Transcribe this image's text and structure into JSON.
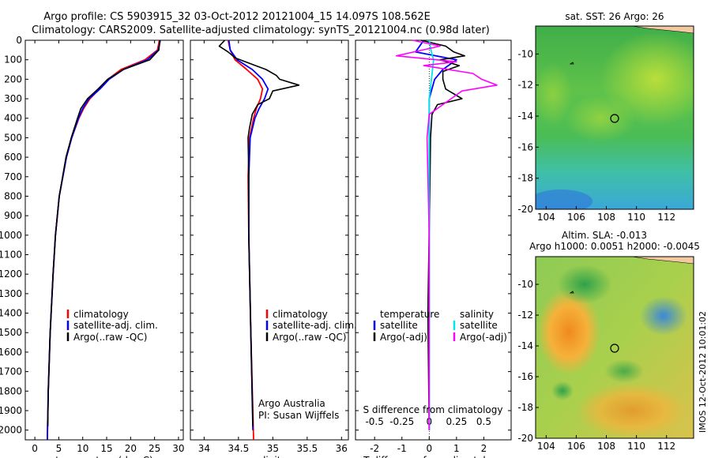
{
  "header": {
    "line1": "Argo profile: CS 5903915_32 03-Oct-2012 20121004_15 14.097S 108.562E",
    "line2": "Climatology: CARS2009. Satellite-adjusted climatology: synTS_20121004.nc (0.98d later)"
  },
  "colors": {
    "climatology": "#ff0000",
    "satellite": "#0000ff",
    "argo": "#000000",
    "sat_cyan": "#00e5ee",
    "argo_magenta": "#ff00ff"
  },
  "footer_side": "IMOS 12-Oct-2012 10:01:02",
  "chart_data": [
    {
      "type": "line",
      "title": "",
      "xlabel": "temperature (deg C)",
      "ylabel": "",
      "xlim": [
        -2,
        31
      ],
      "ylim": [
        2050,
        0
      ],
      "xticks": [
        "0",
        "5",
        "10",
        "15",
        "20",
        "25",
        "30"
      ],
      "yticks": [
        "0",
        "100",
        "200",
        "300",
        "400",
        "500",
        "600",
        "700",
        "800",
        "900",
        "1000",
        "1100",
        "1200",
        "1300",
        "1400",
        "1500",
        "1600",
        "1700",
        "1800",
        "1900",
        "2000"
      ],
      "legend": [
        "climatology",
        "satellite-adj. clim.",
        "Argo(..raw -QC)"
      ],
      "series": [
        {
          "name": "climatology",
          "depth": [
            0,
            50,
            100,
            150,
            200,
            250,
            300,
            350,
            400,
            500,
            600,
            800,
            1000,
            1200,
            1500,
            1800,
            2050
          ],
          "values": [
            26,
            25.6,
            23,
            18,
            15.3,
            13.5,
            11.5,
            10.2,
            9.2,
            7.7,
            6.6,
            5.1,
            4.3,
            3.8,
            3.2,
            2.8,
            2.6
          ]
        },
        {
          "name": "satellite-adj. clim.",
          "depth": [
            0,
            50,
            100,
            150,
            200,
            250,
            300,
            350,
            400,
            500,
            600,
            800,
            1000,
            1200,
            1500,
            1800,
            2050
          ],
          "values": [
            26.2,
            25.8,
            23.5,
            18.5,
            15.5,
            13.6,
            11.3,
            10,
            9.1,
            7.7,
            6.6,
            5.1,
            4.3,
            3.8,
            3.2,
            2.8,
            2.6
          ]
        },
        {
          "name": "Argo(..raw -QC)",
          "depth": [
            0,
            50,
            100,
            150,
            200,
            250,
            300,
            350,
            400,
            500,
            600,
            800,
            1000,
            1200,
            1500,
            1800,
            1980
          ],
          "values": [
            26.1,
            25.9,
            24,
            18.5,
            15.2,
            13.2,
            11,
            9.6,
            8.9,
            7.6,
            6.5,
            5.1,
            4.3,
            3.8,
            3.2,
            2.8,
            2.7
          ]
        }
      ]
    },
    {
      "type": "line",
      "xlabel": "salinity",
      "xlim": [
        33.8,
        36.1
      ],
      "ylim": [
        2050,
        0
      ],
      "xticks": [
        "34",
        "34.5",
        "35",
        "35.5",
        "36"
      ],
      "legend": [
        "climatology",
        "satellite-adj. clim.",
        "Argo(..raw -QC)"
      ],
      "annotations": [
        "Argo Australia",
        "PI: Susan Wijffels"
      ],
      "series": [
        {
          "name": "climatology",
          "depth": [
            0,
            50,
            100,
            150,
            200,
            250,
            300,
            350,
            400,
            500,
            700,
            1000,
            1500,
            2050
          ],
          "values": [
            34.35,
            34.38,
            34.45,
            34.62,
            34.78,
            34.85,
            34.82,
            34.76,
            34.72,
            34.66,
            34.64,
            34.65,
            34.68,
            34.72
          ]
        },
        {
          "name": "satellite-adj. clim.",
          "depth": [
            0,
            50,
            100,
            150,
            200,
            250,
            300,
            350,
            400,
            500,
            700,
            1000,
            1500,
            2000
          ],
          "values": [
            34.36,
            34.38,
            34.48,
            34.7,
            34.85,
            34.93,
            34.88,
            34.8,
            34.74,
            34.67,
            34.65,
            34.65,
            34.68,
            34.71
          ]
        },
        {
          "name": "Argo(..raw -QC)",
          "depth": [
            0,
            30,
            60,
            90,
            130,
            150,
            180,
            200,
            230,
            260,
            300,
            330,
            380,
            450,
            500,
            700,
            1000,
            1500,
            1980
          ],
          "values": [
            34.3,
            34.22,
            34.35,
            34.45,
            34.75,
            34.9,
            35.05,
            35.1,
            35.38,
            35.0,
            34.95,
            34.78,
            34.7,
            34.66,
            34.64,
            34.65,
            34.65,
            34.68,
            34.71
          ]
        }
      ]
    },
    {
      "type": "line",
      "xlabel": "T difference from climatology",
      "xlim": [
        -2.7,
        3.0
      ],
      "ylim": [
        2050,
        0
      ],
      "xticks": [
        "-2",
        "-1",
        "0",
        "1",
        "2"
      ],
      "top_xlabel": "S difference from climatology",
      "top_xticks": [
        "-0.5",
        "-0.25",
        "0",
        "0.25",
        "0.5"
      ],
      "legend_title_t": "temperature",
      "legend_title_s": "salinity",
      "legend": [
        "satellite",
        "Argo(-adj)",
        "satellite",
        "Argo(-adj)"
      ],
      "series": [
        {
          "name": "temperature satellite",
          "depth": [
            0,
            60,
            100,
            150,
            200,
            300,
            400,
            600,
            1000,
            1500,
            2000
          ],
          "values": [
            -0.2,
            -0.5,
            1.0,
            0.5,
            0.2,
            0.0,
            0.0,
            0.0,
            0.0,
            0.0,
            0.0
          ]
        },
        {
          "name": "temperature Argo(-adj)",
          "depth": [
            0,
            30,
            60,
            80,
            100,
            130,
            160,
            200,
            250,
            300,
            330,
            380,
            500,
            800,
            1400,
            2000
          ],
          "values": [
            -0.3,
            0.6,
            0.9,
            1.3,
            0.4,
            1.1,
            0.5,
            0.5,
            0.6,
            1.2,
            0.3,
            0.1,
            0.05,
            0.02,
            -0.05,
            0.0
          ]
        },
        {
          "name": "salinity satellite",
          "depth": [
            0,
            60,
            100,
            150,
            200,
            300,
            400,
            700,
            1000,
            1500,
            2000
          ],
          "values": [
            0.0,
            0.02,
            0.04,
            0.03,
            0.02,
            0.0,
            0.0,
            0.0,
            0.0,
            0.0,
            0.0
          ]
        },
        {
          "name": "salinity Argo(-adj)",
          "depth": [
            0,
            30,
            80,
            110,
            130,
            170,
            200,
            230,
            260,
            300,
            380,
            500,
            1000,
            1500,
            2000
          ],
          "values": [
            -0.15,
            0.1,
            -0.3,
            0.25,
            -0.05,
            0.4,
            0.48,
            0.62,
            0.3,
            0.2,
            0.0,
            -0.02,
            0.0,
            0.0,
            0.0
          ]
        }
      ]
    },
    {
      "type": "heatmap",
      "title": "sat. SST: 26 Argo: 26",
      "xlim": [
        103.3,
        113.8
      ],
      "ylim": [
        -20,
        -8.2
      ],
      "xticks": [
        "104",
        "106",
        "108",
        "110",
        "112"
      ],
      "yticks": [
        "-10",
        "-12",
        "-14",
        "-16",
        "-18",
        "-20"
      ],
      "marker": {
        "lon": 108.562,
        "lat": -14.097
      }
    },
    {
      "type": "heatmap",
      "title": "Altim. SLA: -0.013",
      "subtitle": "Argo h1000: 0.0051 h2000: -0.0045",
      "xlim": [
        103.3,
        113.8
      ],
      "ylim": [
        -20,
        -8.2
      ],
      "xticks": [
        "104",
        "106",
        "108",
        "110",
        "112"
      ],
      "yticks": [
        "-10",
        "-12",
        "-14",
        "-16",
        "-18",
        "-20"
      ],
      "marker": {
        "lon": 108.562,
        "lat": -14.097
      }
    }
  ]
}
